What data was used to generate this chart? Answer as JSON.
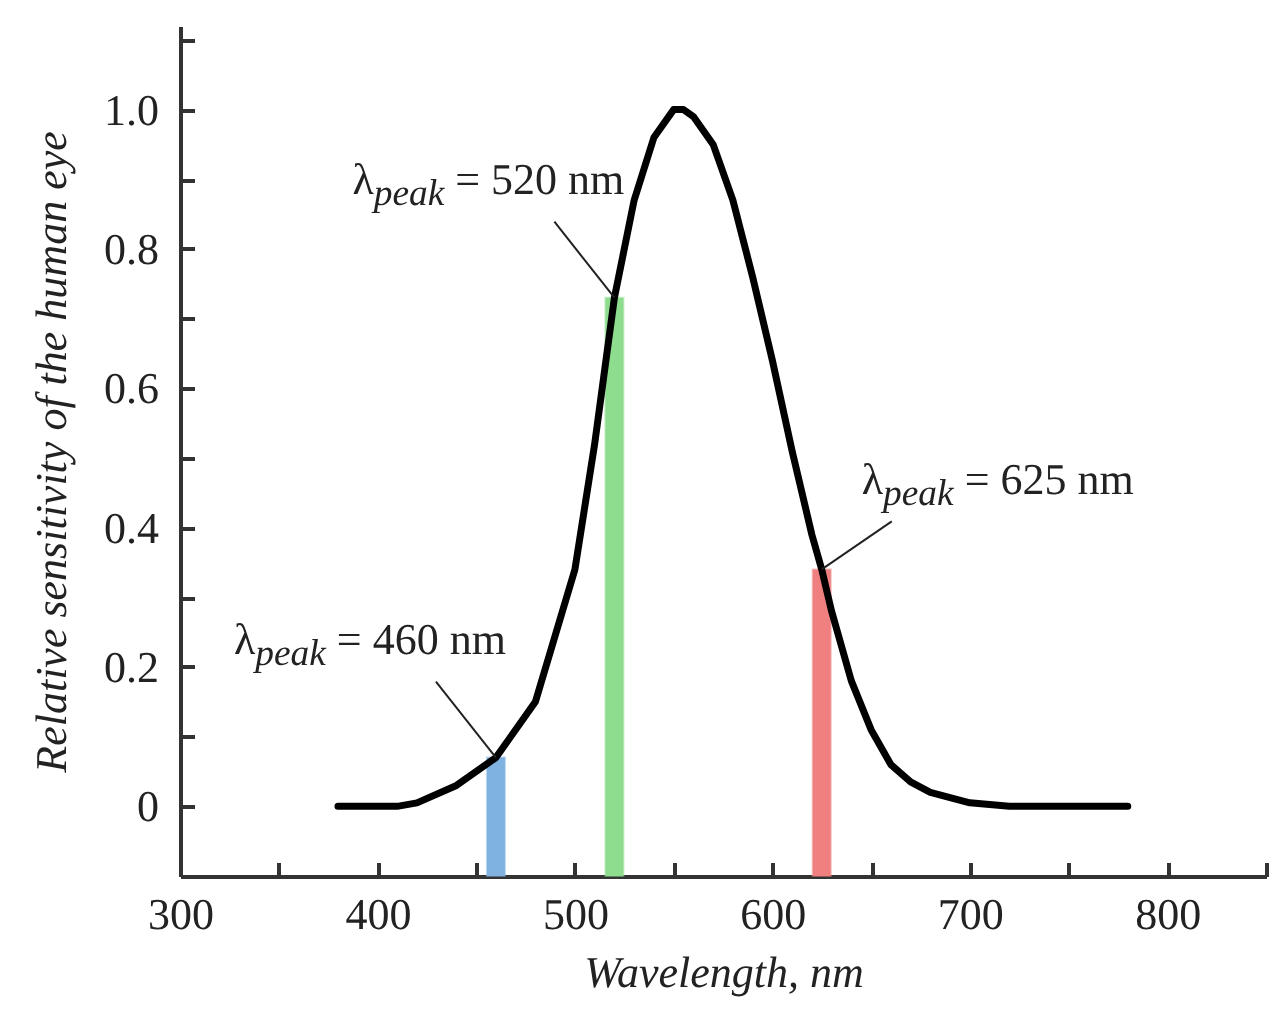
{
  "chart_data": {
    "type": "line",
    "xlabel": "Wavelength, nm",
    "ylabel": "Relative sensitivity of the human eye",
    "series": [
      {
        "color": "#000000",
        "x": [
          380,
          400,
          410,
          420,
          440,
          460,
          480,
          500,
          510,
          520,
          530,
          540,
          550,
          555,
          560,
          570,
          580,
          590,
          600,
          610,
          620,
          625,
          630,
          640,
          650,
          660,
          670,
          680,
          700,
          720,
          780
        ],
        "values": [
          0,
          0,
          0,
          0.005,
          0.03,
          0.07,
          0.15,
          0.34,
          0.52,
          0.73,
          0.87,
          0.96,
          1.0,
          1.0,
          0.99,
          0.95,
          0.87,
          0.76,
          0.64,
          0.51,
          0.39,
          0.34,
          0.28,
          0.18,
          0.11,
          0.06,
          0.035,
          0.02,
          0.005,
          0,
          0
        ]
      },
      {
        "type": "bar",
        "x": [
          460,
          520,
          625
        ],
        "base": [
          -0.1,
          -0.1,
          -0.1
        ],
        "values": [
          0.17,
          0.83,
          0.44
        ],
        "colors": [
          "#7fb2e0",
          "#8edc8e",
          "#f08080"
        ]
      }
    ],
    "annotations": [
      {
        "text": "λ$_{peak}$ = 460 nm",
        "x": 460,
        "y": 0.07
      },
      {
        "text": "λ$_{peak}$ = 520 nm",
        "x": 520,
        "y": 0.73
      },
      {
        "text": "λ$_{peak}$ = 625 nm",
        "x": 625,
        "y": 0.34
      }
    ],
    "xlim": [
      300,
      850
    ],
    "ylim": [
      -0.1,
      1.12
    ],
    "xticks": [
      300,
      {
        "value": 350,
        "label": null
      },
      400,
      {
        "value": 450,
        "label": null
      },
      500,
      {
        "value": 550,
        "label": null
      },
      600,
      {
        "value": 650,
        "label": null
      },
      700,
      {
        "value": 750,
        "label": null
      },
      800,
      {
        "value": 850,
        "label": null
      }
    ],
    "yticks": [
      0,
      {
        "value": 0.1,
        "label": null
      },
      0.2,
      {
        "value": 0.3,
        "label": null
      },
      0.4,
      {
        "value": 0.5,
        "label": null
      },
      0.6,
      {
        "value": 0.7,
        "label": null
      },
      0.8,
      {
        "value": 0.9,
        "label": null
      },
      {
        "value": 1,
        "label": "1.0"
      },
      {
        "value": 1.1,
        "label": null
      }
    ],
    "grid": false,
    "marker": "none",
    "line_style": "solid"
  }
}
